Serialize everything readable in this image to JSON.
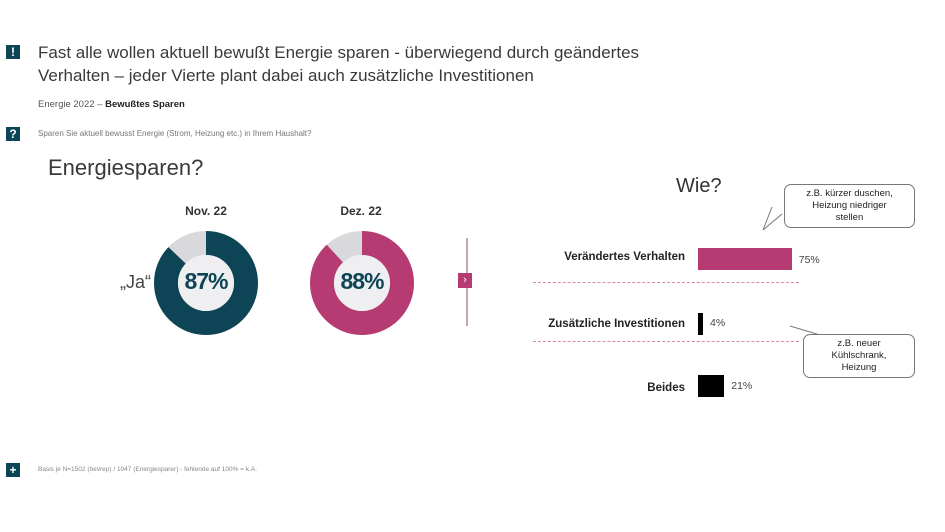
{
  "header": {
    "title_icon": "!",
    "title": "Fast alle wollen aktuell bewußt Energie sparen - überwiegend durch geändertes Verhalten – jeder Vierte plant dabei auch zusätzliche Investitionen",
    "subtitle_prefix": "Energie 2022 – ",
    "subtitle_bold": "Bewußtes Sparen",
    "question_icon": "?",
    "question": "Sparen Sie aktuell bewusst Energie (Strom, Heizung etc.) in Ihrem Haushalt?"
  },
  "footer": {
    "icon": "+",
    "note": "Basis je N=1502 (bevrep) / 1047 (Energiesparer) - fehlende auf 100% = k.A."
  },
  "colors": {
    "teal": "#0d4557",
    "magenta": "#b63b72",
    "grey": "#d9d9dc",
    "black": "#000000"
  },
  "chart_data": [
    {
      "type": "pie",
      "title": "Energiesparen?",
      "row_label": "„Ja“",
      "series": [
        {
          "name": "Nov. 22",
          "value": 87,
          "label": "87%",
          "color": "#0d4557"
        },
        {
          "name": "Dez. 22",
          "value": 88,
          "label": "88%",
          "color": "#b63b72"
        }
      ]
    },
    {
      "type": "bar",
      "title": "Wie?",
      "categories": [
        "Verändertes Verhalten",
        "Zusätzliche Investitionen",
        "Beides"
      ],
      "values": [
        75,
        4,
        21
      ],
      "labels": [
        "75%",
        "4%",
        "21%"
      ],
      "colors": [
        "#b63b72",
        "#000000",
        "#000000"
      ],
      "annotations": [
        {
          "target": "Verändertes Verhalten",
          "text": [
            "z.B. kürzer duschen,",
            "Heizung niedriger",
            "stellen"
          ]
        },
        {
          "target": "Zusätzliche Investitionen",
          "text": [
            "z.B. neuer",
            "Kühlschrank,",
            "Heizung"
          ]
        }
      ]
    }
  ],
  "nav": {
    "arrow": "›"
  }
}
